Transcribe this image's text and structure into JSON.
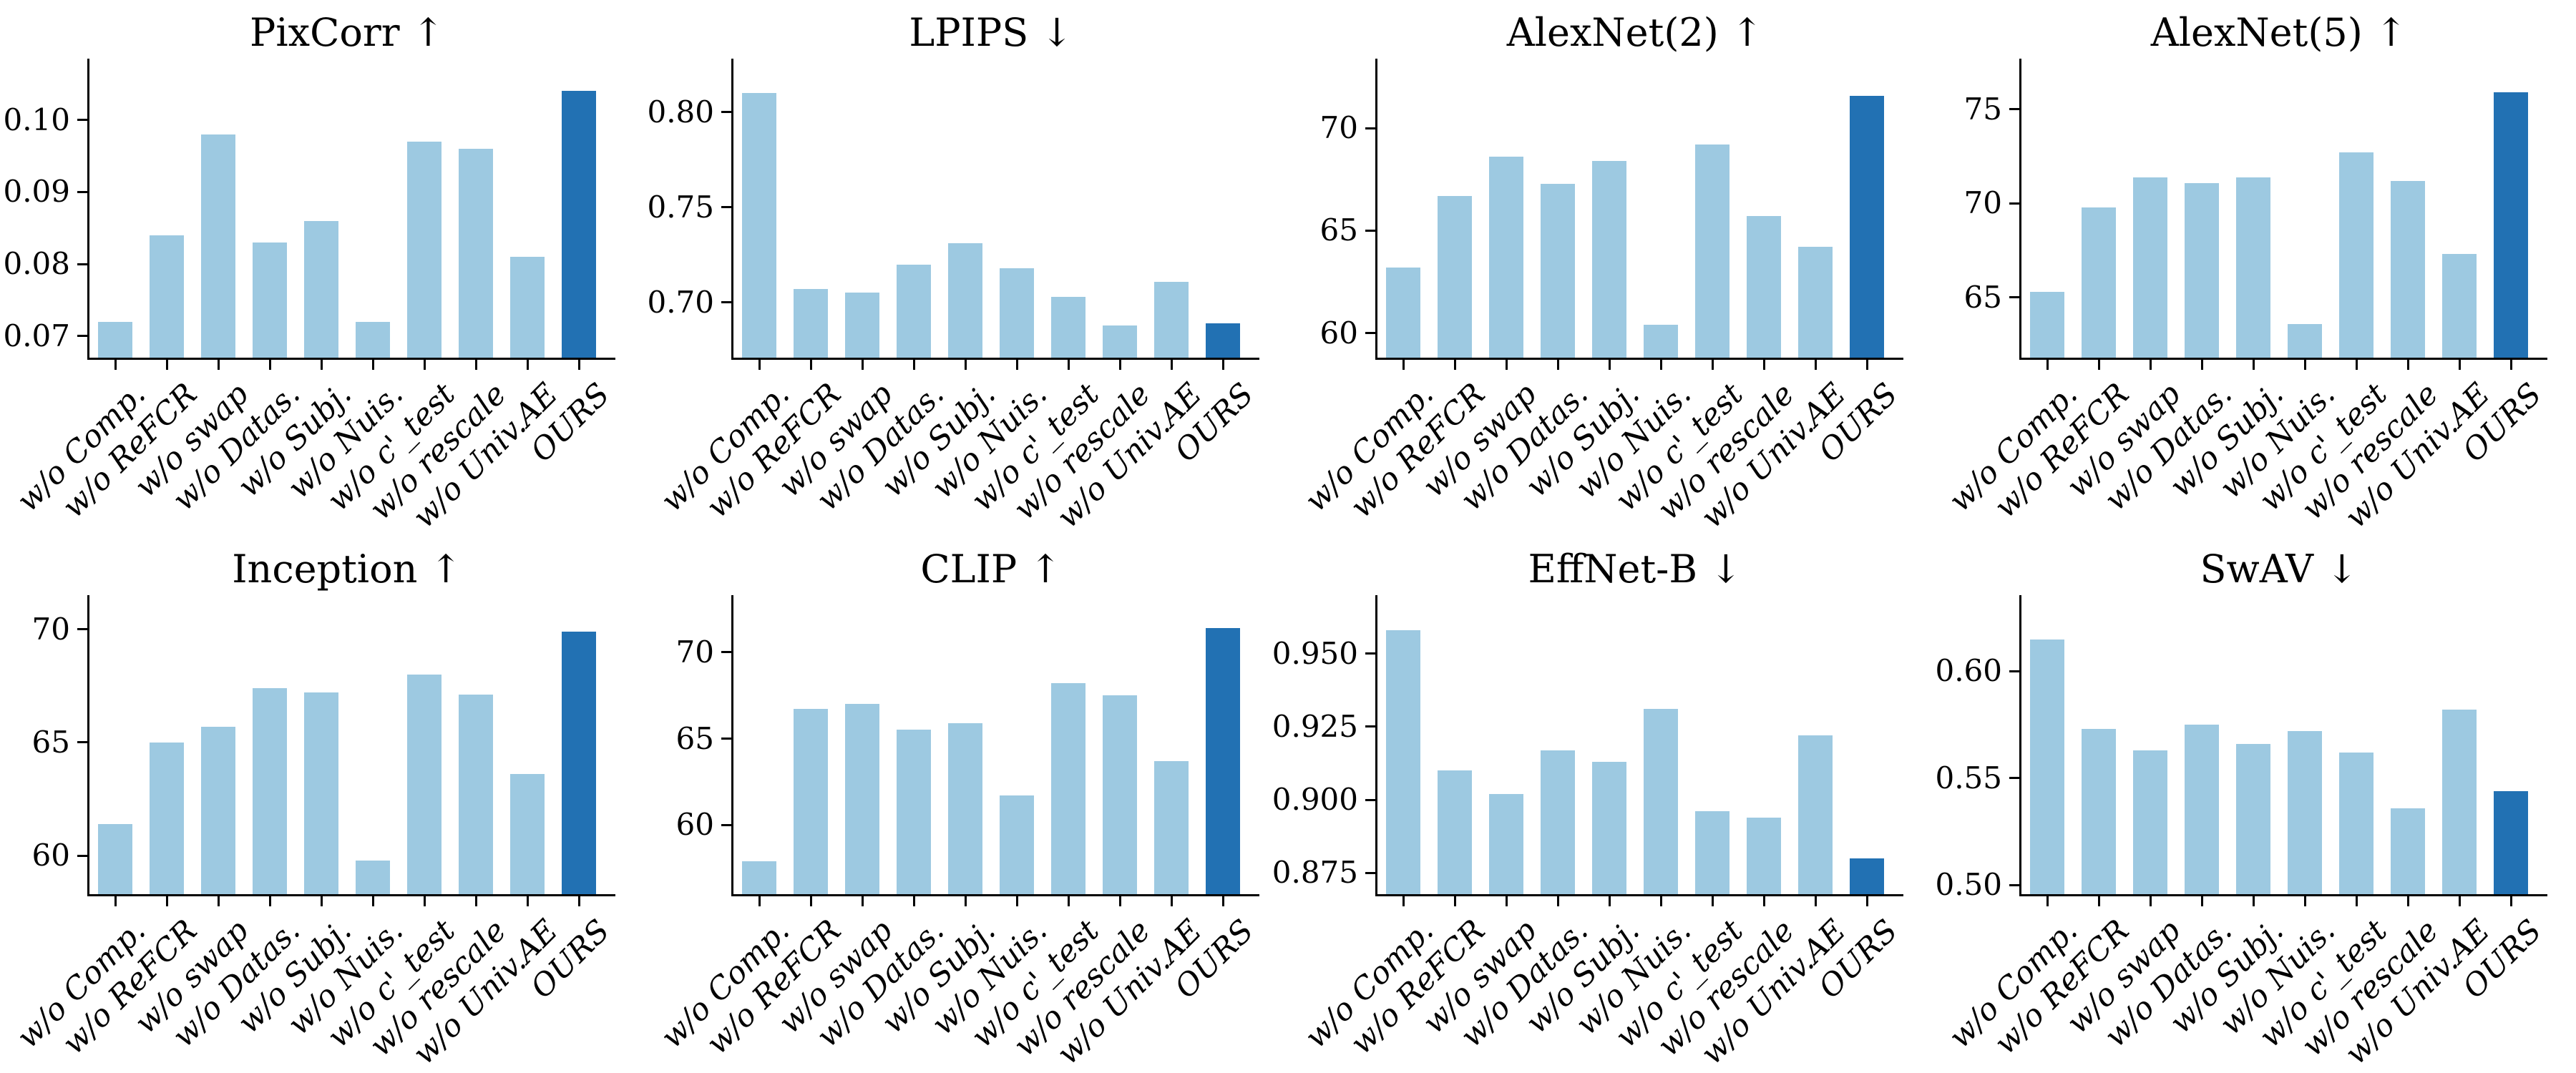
{
  "figure": {
    "kind": "ablation-bar-chart-grid",
    "rows": 2,
    "cols": 4,
    "background": "#ffffff"
  },
  "style": {
    "bar_color_light": "#9dc9e1",
    "bar_color_highlight": "#2271b3",
    "axis_color": "#000000",
    "text_color": "#000000"
  },
  "categories": [
    "w/o Comp.",
    "w/o ReFCR",
    "w/o swap",
    "w/o Datas.",
    "w/o Subj.",
    "w/o Nuis.",
    "w/o c'_test",
    "w/o rescale",
    "w/o Univ.AE",
    "OURS"
  ],
  "highlight_category": "OURS",
  "chart_data": [
    {
      "type": "bar",
      "title": "PixCorr",
      "better": "higher",
      "title_display": "PixCorr ↑",
      "categories": [
        "w/o Comp.",
        "w/o ReFCR",
        "w/o swap",
        "w/o Datas.",
        "w/o Subj.",
        "w/o Nuis.",
        "w/o c'_test",
        "w/o rescale",
        "w/o Univ.AE",
        "OURS"
      ],
      "values": [
        0.072,
        0.084,
        0.098,
        0.083,
        0.086,
        0.072,
        0.097,
        0.096,
        0.081,
        0.104
      ],
      "highlight_index": 9,
      "ylim": [
        0.067,
        0.1085
      ],
      "yticks": {
        "values": [
          0.07,
          0.08,
          0.09,
          0.1
        ],
        "labels": [
          "0.07",
          "0.08",
          "0.09",
          "0.10"
        ]
      },
      "grid": false,
      "legend": false
    },
    {
      "type": "bar",
      "title": "LPIPS",
      "better": "lower",
      "title_display": "LPIPS ↓",
      "categories": [
        "w/o Comp.",
        "w/o ReFCR",
        "w/o swap",
        "w/o Datas.",
        "w/o Subj.",
        "w/o Nuis.",
        "w/o c'_test",
        "w/o rescale",
        "w/o Univ.AE",
        "OURS"
      ],
      "values": [
        0.81,
        0.707,
        0.705,
        0.72,
        0.731,
        0.718,
        0.703,
        0.688,
        0.711,
        0.689
      ],
      "highlight_index": 9,
      "ylim": [
        0.671,
        0.828
      ],
      "yticks": {
        "values": [
          0.7,
          0.75,
          0.8
        ],
        "labels": [
          "0.70",
          "0.75",
          "0.80"
        ]
      },
      "grid": false,
      "legend": false
    },
    {
      "type": "bar",
      "title": "AlexNet(2)",
      "better": "higher",
      "title_display": "AlexNet(2) ↑",
      "categories": [
        "w/o Comp.",
        "w/o ReFCR",
        "w/o swap",
        "w/o Datas.",
        "w/o Subj.",
        "w/o Nuis.",
        "w/o c'_test",
        "w/o rescale",
        "w/o Univ.AE",
        "OURS"
      ],
      "values": [
        63.2,
        66.7,
        68.6,
        67.3,
        68.4,
        60.4,
        69.2,
        65.7,
        64.2,
        71.6
      ],
      "highlight_index": 9,
      "ylim": [
        58.8,
        73.4
      ],
      "yticks": {
        "values": [
          60,
          65,
          70
        ],
        "labels": [
          "60",
          "65",
          "70"
        ]
      },
      "grid": false,
      "legend": false
    },
    {
      "type": "bar",
      "title": "AlexNet(5)",
      "better": "higher",
      "title_display": "AlexNet(5) ↑",
      "categories": [
        "w/o Comp.",
        "w/o ReFCR",
        "w/o swap",
        "w/o Datas.",
        "w/o Subj.",
        "w/o Nuis.",
        "w/o c'_test",
        "w/o rescale",
        "w/o Univ.AE",
        "OURS"
      ],
      "values": [
        65.3,
        69.8,
        71.4,
        71.1,
        71.4,
        63.6,
        72.7,
        71.2,
        67.3,
        75.9
      ],
      "highlight_index": 9,
      "ylim": [
        61.8,
        77.7
      ],
      "yticks": {
        "values": [
          65,
          70,
          75
        ],
        "labels": [
          "65",
          "70",
          "75"
        ]
      },
      "grid": false,
      "legend": false
    },
    {
      "type": "bar",
      "title": "Inception",
      "better": "higher",
      "title_display": "Inception ↑",
      "categories": [
        "w/o Comp.",
        "w/o ReFCR",
        "w/o swap",
        "w/o Datas.",
        "w/o Subj.",
        "w/o Nuis.",
        "w/o c'_test",
        "w/o rescale",
        "w/o Univ.AE",
        "OURS"
      ],
      "values": [
        61.4,
        65.0,
        65.7,
        67.4,
        67.2,
        59.8,
        68.0,
        67.1,
        63.6,
        69.9
      ],
      "highlight_index": 9,
      "ylim": [
        58.3,
        71.5
      ],
      "yticks": {
        "values": [
          60,
          65,
          70
        ],
        "labels": [
          "60",
          "65",
          "70"
        ]
      },
      "grid": false,
      "legend": false
    },
    {
      "type": "bar",
      "title": "CLIP",
      "better": "higher",
      "title_display": "CLIP ↑",
      "categories": [
        "w/o Comp.",
        "w/o ReFCR",
        "w/o swap",
        "w/o Datas.",
        "w/o Subj.",
        "w/o Nuis.",
        "w/o c'_test",
        "w/o rescale",
        "w/o Univ.AE",
        "OURS"
      ],
      "values": [
        57.9,
        66.7,
        67.0,
        65.5,
        65.9,
        61.7,
        68.2,
        67.5,
        63.7,
        71.4
      ],
      "highlight_index": 9,
      "ylim": [
        56.0,
        73.3
      ],
      "yticks": {
        "values": [
          60,
          65,
          70
        ],
        "labels": [
          "60",
          "65",
          "70"
        ]
      },
      "grid": false,
      "legend": false
    },
    {
      "type": "bar",
      "title": "EffNet-B",
      "better": "lower",
      "title_display": "EffNet-B ↓",
      "categories": [
        "w/o Comp.",
        "w/o ReFCR",
        "w/o swap",
        "w/o Datas.",
        "w/o Subj.",
        "w/o Nuis.",
        "w/o c'_test",
        "w/o rescale",
        "w/o Univ.AE",
        "OURS"
      ],
      "values": [
        0.958,
        0.91,
        0.902,
        0.917,
        0.913,
        0.931,
        0.896,
        0.894,
        0.922,
        0.88
      ],
      "highlight_index": 9,
      "ylim": [
        0.8677,
        0.97
      ],
      "yticks": {
        "values": [
          0.875,
          0.9,
          0.925,
          0.95
        ],
        "labels": [
          "0.875",
          "0.900",
          "0.925",
          "0.950"
        ]
      },
      "grid": false,
      "legend": false
    },
    {
      "type": "bar",
      "title": "SwAV",
      "better": "lower",
      "title_display": "SwAV ↓",
      "categories": [
        "w/o Comp.",
        "w/o ReFCR",
        "w/o swap",
        "w/o Datas.",
        "w/o Subj.",
        "w/o Nuis.",
        "w/o c'_test",
        "w/o rescale",
        "w/o Univ.AE",
        "OURS"
      ],
      "values": [
        0.615,
        0.573,
        0.563,
        0.575,
        0.566,
        0.572,
        0.562,
        0.536,
        0.582,
        0.544
      ],
      "highlight_index": 9,
      "ylim": [
        0.4958,
        0.6356
      ],
      "yticks": {
        "values": [
          0.5,
          0.55,
          0.6
        ],
        "labels": [
          "0.50",
          "0.55",
          "0.60"
        ]
      },
      "grid": false,
      "legend": false
    }
  ]
}
